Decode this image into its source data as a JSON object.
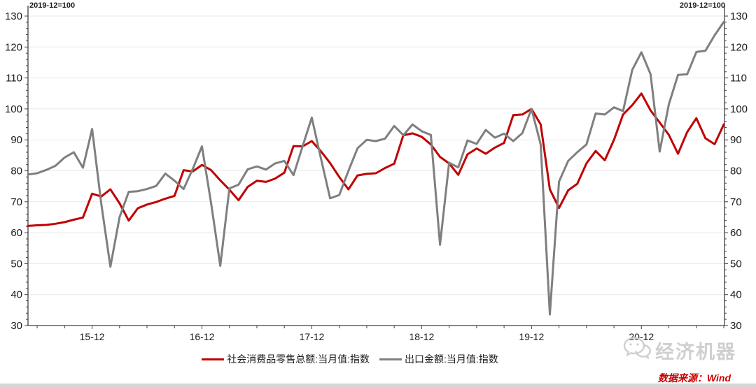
{
  "chart_data": {
    "type": "line",
    "title": "",
    "base_note": "2019-12=100",
    "grid": true,
    "legend_position": "bottom-center",
    "y_axis": {
      "min": 30,
      "max": 130,
      "step": 10,
      "minor_step": 2,
      "sides": "both"
    },
    "x_axis": {
      "tick_labels": [
        "15-12",
        "16-12",
        "17-12",
        "18-12",
        "19-12",
        "20-12"
      ],
      "minor_tick_months": [
        3,
        6,
        9
      ]
    },
    "months": [
      "2015-05",
      "2015-06",
      "2015-07",
      "2015-08",
      "2015-09",
      "2015-10",
      "2015-11",
      "2015-12",
      "2016-01",
      "2016-02",
      "2016-03",
      "2016-04",
      "2016-05",
      "2016-06",
      "2016-07",
      "2016-08",
      "2016-09",
      "2016-10",
      "2016-11",
      "2016-12",
      "2017-01",
      "2017-02",
      "2017-03",
      "2017-04",
      "2017-05",
      "2017-06",
      "2017-07",
      "2017-08",
      "2017-09",
      "2017-10",
      "2017-11",
      "2017-12",
      "2018-01",
      "2018-02",
      "2018-03",
      "2018-04",
      "2018-05",
      "2018-06",
      "2018-07",
      "2018-08",
      "2018-09",
      "2018-10",
      "2018-11",
      "2018-12",
      "2019-01",
      "2019-02",
      "2019-03",
      "2019-04",
      "2019-05",
      "2019-06",
      "2019-07",
      "2019-08",
      "2019-09",
      "2019-10",
      "2019-11",
      "2019-12",
      "2020-01",
      "2020-02",
      "2020-03",
      "2020-04",
      "2020-05",
      "2020-06",
      "2020-07",
      "2020-08",
      "2020-09",
      "2020-10",
      "2020-11",
      "2020-12",
      "2021-01",
      "2021-02",
      "2021-03",
      "2021-04",
      "2021-05",
      "2021-06",
      "2021-07",
      "2021-08",
      "2021-09"
    ],
    "series": [
      {
        "name": "社会消费品零售总额:当月值:指数",
        "color": "#C00000",
        "values": [
          62.2,
          62.4,
          62.5,
          62.9,
          63.4,
          64.2,
          64.9,
          72.6,
          71.7,
          74.0,
          69.5,
          63.9,
          67.9,
          69.1,
          69.9,
          71.0,
          71.9,
          80.2,
          79.8,
          81.9,
          80.2,
          76.9,
          73.9,
          70.5,
          74.8,
          76.8,
          76.4,
          77.5,
          79.4,
          88.0,
          87.9,
          89.6,
          86.3,
          82.5,
          78.0,
          74.0,
          78.5,
          79.0,
          79.2,
          80.9,
          82.3,
          91.5,
          92.1,
          91.0,
          88.5,
          84.5,
          82.4,
          78.7,
          85.3,
          87.2,
          85.5,
          87.5,
          89.0,
          98.0,
          98.2,
          100.0,
          95.0,
          74.0,
          68.0,
          73.7,
          75.8,
          82.4,
          86.4,
          83.4,
          90.0,
          98.2,
          101.2,
          105.0,
          99.5,
          95.6,
          91.6,
          85.5,
          92.5,
          97.0,
          90.5,
          88.6,
          95.0
        ]
      },
      {
        "name": "出口金额:当月值:指数",
        "color": "#7F7F7F",
        "values": [
          78.8,
          79.2,
          80.3,
          81.6,
          84.3,
          86.0,
          81.0,
          93.5,
          69.5,
          49.0,
          65.0,
          73.2,
          73.4,
          74.1,
          75.1,
          79.1,
          76.8,
          74.1,
          80.6,
          87.9,
          69.5,
          49.3,
          74.3,
          75.5,
          80.5,
          81.4,
          80.4,
          82.4,
          83.2,
          78.6,
          88.0,
          97.2,
          84.0,
          71.1,
          72.2,
          80.0,
          87.3,
          90.0,
          89.6,
          90.4,
          94.5,
          91.5,
          95.0,
          92.8,
          91.6,
          56.1,
          82.6,
          81.1,
          89.8,
          88.7,
          93.2,
          90.7,
          92.0,
          89.6,
          92.2,
          100.0,
          88.5,
          33.6,
          76.5,
          83.2,
          86.0,
          88.5,
          98.5,
          98.2,
          100.5,
          99.3,
          112.6,
          118.3,
          111.2,
          86.2,
          101.5,
          111.0,
          111.2,
          118.4,
          118.8,
          123.8,
          128.1
        ]
      }
    ],
    "plot_colors": {
      "grid": "#e9e9e9",
      "axis": "#404040",
      "tick_text": "#1a1a1a"
    }
  },
  "legend": {
    "items": [
      {
        "label": "社会消费品零售总额:当月值:指数"
      },
      {
        "label": "出口金额:当月值:指数"
      }
    ]
  },
  "watermark": {
    "brand": "经济机器"
  },
  "source": {
    "label": "数据来源：Wind"
  }
}
